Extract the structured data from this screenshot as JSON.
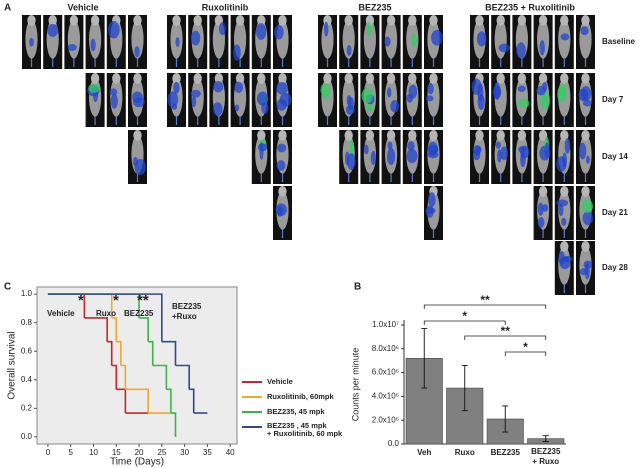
{
  "panel_a": {
    "label": "A",
    "groups": [
      "Vehicle",
      "Ruxolitinib",
      "BEZ235",
      "BEZ235 + Ruxolitinib"
    ],
    "rows": [
      "Baseline",
      "Day 7",
      "Day 14",
      "Day 21",
      "Day 28"
    ]
  },
  "chart_data": [
    {
      "type": "step",
      "panel": "C",
      "xlabel": "Time (Days)",
      "ylabel": "Overall survival",
      "xlim": [
        -2.4,
        41.5
      ],
      "ylim": [
        -0.05,
        1.05
      ],
      "xticks": [
        0,
        5,
        10,
        15,
        20,
        25,
        30,
        35,
        40
      ],
      "yticks": [
        {
          "value": 0,
          "label": "0.0"
        },
        0.2,
        0.4,
        0.6,
        0.8,
        {
          "value": 1,
          "label": "1.0"
        }
      ],
      "series": [
        {
          "name": "Vehicle",
          "color": "#c0282d",
          "x": [
            0,
            8,
            13,
            14,
            15,
            17,
            22
          ],
          "values": [
            1,
            0.833,
            0.667,
            0.5,
            0.333,
            0.167,
            0.167
          ]
        },
        {
          "name": "Ruxolitinib, 60mpk",
          "color": "#f0a830",
          "x": [
            0,
            14,
            15,
            16,
            17,
            22,
            27
          ],
          "values": [
            1,
            0.833,
            0.667,
            0.5,
            0.333,
            0.167,
            0.167
          ]
        },
        {
          "name": "BEZ235, 45 mpk",
          "color": "#3cb44b",
          "x": [
            0,
            20,
            22,
            23,
            26,
            27,
            28
          ],
          "values": [
            1,
            0.833,
            0.667,
            0.5,
            0.333,
            0.167,
            0
          ]
        },
        {
          "name": "BEZ235 , 45 mpk\n+ Ruxolitinib, 60 mpk",
          "color": "#2f4a8f",
          "x": [
            0,
            25,
            28,
            31,
            32,
            35
          ],
          "values": [
            1,
            0.667,
            0.5,
            0.333,
            0.167,
            0.167
          ]
        }
      ],
      "annotations": [
        "*",
        "*",
        "**",
        "Vehicle",
        "Ruxo",
        "BEZ235",
        "BEZ235\n+Ruxo"
      ]
    },
    {
      "type": "bar",
      "panel": "B",
      "ylabel": "Counts per minute",
      "categories": [
        "Veh",
        "Ruxo",
        "BEZ235",
        "BEZ235\n+ Ruxo"
      ],
      "values": [
        7200000,
        4700000,
        2100000,
        450000
      ],
      "errors": [
        2500000,
        1900000,
        1100000,
        250000
      ],
      "color": "#808080",
      "ylim": [
        0,
        10000000
      ],
      "yticks": [
        {
          "value": 0,
          "label": "0.0"
        },
        {
          "value": 2000000,
          "label": "2.0x10⁶"
        },
        {
          "value": 4000000,
          "label": "4.0x10⁶"
        },
        {
          "value": 6000000,
          "label": "6.0x10⁶"
        },
        {
          "value": 8000000,
          "label": "8.0x10⁶"
        },
        {
          "value": 10000000,
          "label": "1.0x10⁷"
        }
      ],
      "brackets": [
        {
          "from": "Veh",
          "to": "BEZ235\n+ Ruxo",
          "label": "**"
        },
        {
          "from": "Veh",
          "to": "BEZ235",
          "label": "*"
        },
        {
          "from": "Ruxo",
          "to": "BEZ235\n+ Ruxo",
          "label": "**"
        },
        {
          "from": "BEZ235",
          "to": "BEZ235\n+ Ruxo",
          "label": "*"
        }
      ]
    }
  ]
}
